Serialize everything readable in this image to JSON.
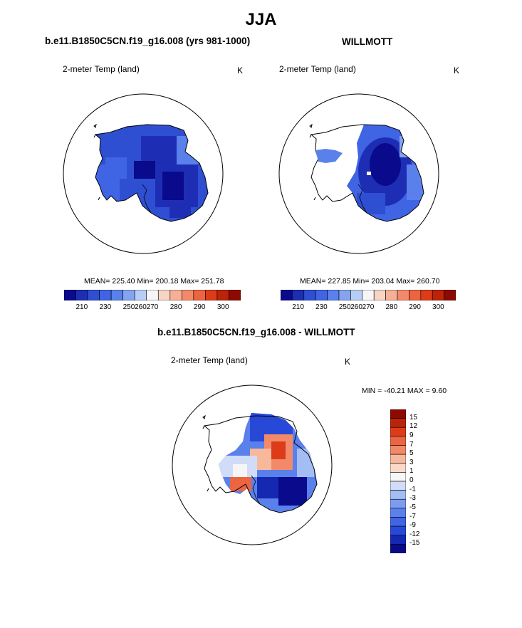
{
  "title": "JJA",
  "panels": [
    {
      "title": "b.e11.B1850C5CN.f19_g16.008 (yrs 981-1000)",
      "variable": "2-meter Temp (land)",
      "units": "K",
      "stats": "MEAN= 225.40  Min= 200.18  Max= 251.78"
    },
    {
      "title": "WILLMOTT",
      "variable": "2-meter Temp (land)",
      "units": "K",
      "stats": "MEAN= 227.85  Min= 203.04  Max= 260.70"
    },
    {
      "title": "b.e11.B1850C5CN.f19_g16.008 - WILLMOTT",
      "variable": "2-meter Temp (land)",
      "units": "K",
      "stats": "MIN = -40.21 MAX =   9.60"
    }
  ],
  "abs_colorbar": {
    "colors": [
      "#0a0a8c",
      "#1e2eb4",
      "#2f4fd2",
      "#3f64e4",
      "#5a80ec",
      "#84a4f0",
      "#b6cdf6",
      "#f6f6f6",
      "#f8d4c4",
      "#f6b096",
      "#f28a6a",
      "#ec6440",
      "#dc3c18",
      "#bb2408",
      "#8c0a00"
    ],
    "ticks": [
      "210",
      "230",
      "250",
      "260",
      "270",
      "280",
      "290",
      "300"
    ]
  },
  "diff_colorbar": {
    "colors": [
      "#0a0a8c",
      "#1428b2",
      "#2848d8",
      "#3f64e4",
      "#5a80ec",
      "#7c9cf0",
      "#a4bef4",
      "#d0dcf8",
      "#f6f6f6",
      "#fbd8c8",
      "#f8b89c",
      "#f28a6a",
      "#ec6440",
      "#dc3c18",
      "#bb2408",
      "#8c0a00"
    ],
    "labels": [
      "15",
      "12",
      "9",
      "7",
      "5",
      "3",
      "1",
      "0",
      "-1",
      "-3",
      "-5",
      "-7",
      "-9",
      "-12",
      "-15"
    ]
  }
}
